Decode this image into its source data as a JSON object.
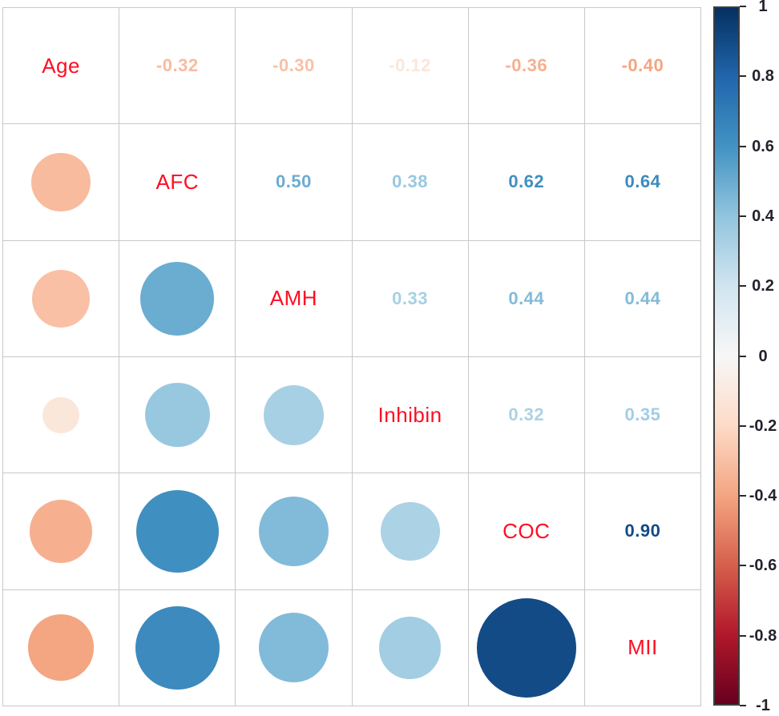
{
  "chart_data": {
    "type": "heatmap",
    "subtype": "correlation-matrix",
    "title": "",
    "variables": [
      "Age",
      "AFC",
      "AMH",
      "Inhibin",
      "COC",
      "MII"
    ],
    "matrix": [
      [
        1.0,
        -0.32,
        -0.3,
        -0.12,
        -0.36,
        -0.4
      ],
      [
        -0.32,
        1.0,
        0.5,
        0.38,
        0.62,
        0.64
      ],
      [
        -0.3,
        0.5,
        1.0,
        0.33,
        0.44,
        0.44
      ],
      [
        -0.12,
        0.38,
        0.33,
        1.0,
        0.32,
        0.35
      ],
      [
        -0.36,
        0.62,
        0.44,
        0.32,
        1.0,
        0.9
      ],
      [
        -0.4,
        0.64,
        0.44,
        0.35,
        0.9,
        1.0
      ]
    ],
    "upper_triangle": "numeric values, 2 decimals, colored by correlation",
    "lower_triangle": "circles, area and color scaled by correlation",
    "diagonal": "variable names in red",
    "legend_position": "right",
    "colorbar": {
      "min": -1,
      "max": 1,
      "tick_labels": [
        "1",
        "0.8",
        "0.6",
        "0.4",
        "0.2",
        "0",
        "-0.2",
        "-0.4",
        "-0.6",
        "-0.8",
        "-1"
      ],
      "tick_values": [
        1,
        0.8,
        0.6,
        0.4,
        0.2,
        0,
        -0.2,
        -0.4,
        -0.6,
        -0.8,
        -1
      ]
    },
    "palette_pos1_to_neg1": [
      "#053061",
      "#2166AC",
      "#4393C3",
      "#92C5DE",
      "#D1E5F0",
      "#F7F7F7",
      "#FDDBC7",
      "#F4A582",
      "#D6604D",
      "#B2182B",
      "#67001F"
    ],
    "colors": {
      "diagonal_label": "#FF0D22",
      "grid_line": "#C8C8C8",
      "tick_label": "#23232E",
      "colorbar_border": "#3D3D3D",
      "background": "#FFFFFF"
    }
  }
}
